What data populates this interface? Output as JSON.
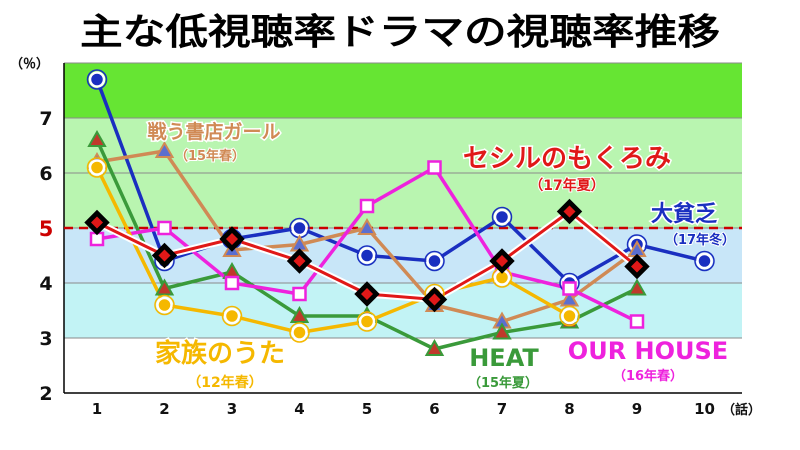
{
  "chart_data": {
    "type": "line",
    "title": "主な低視聴率ドラマの視聴率推移",
    "ylabel": "（％）",
    "xlabel": "（話）",
    "x": [
      1,
      2,
      3,
      4,
      5,
      6,
      7,
      8,
      9,
      10
    ],
    "x_tick_labels": [
      "1",
      "2",
      "3",
      "4",
      "5",
      "6",
      "7",
      "8",
      "9",
      "10"
    ],
    "y_tick_labels": [
      "2",
      "3",
      "4",
      "5",
      "6",
      "7"
    ],
    "ylim": [
      2,
      8
    ],
    "reference_line": {
      "value": 5,
      "label": "5",
      "color": "#cc0000"
    },
    "bands": [
      {
        "from": 7,
        "to": 8,
        "color": "#66e533"
      },
      {
        "from": 5,
        "to": 7,
        "color": "#b9f5b0"
      },
      {
        "from": 4,
        "to": 5,
        "color": "#c8e6f8"
      },
      {
        "from": 3,
        "to": 4,
        "color": "#c2f3f5"
      }
    ],
    "series": [
      {
        "name": "大貧乏",
        "season": "（17年冬）",
        "color": "#1a2fc0",
        "marker": "circle",
        "values": [
          7.7,
          4.4,
          4.8,
          5.0,
          4.5,
          4.4,
          5.2,
          4.0,
          4.7,
          4.4
        ]
      },
      {
        "name": "戦う書店ガール",
        "season": "（15年春）",
        "color": "#d08a55",
        "marker": "triangle",
        "values": [
          6.2,
          6.4,
          4.6,
          4.7,
          5.0,
          3.6,
          3.3,
          3.7,
          4.6,
          null
        ]
      },
      {
        "name": "HEAT",
        "season": "（15年夏）",
        "color": "#3a9a3a",
        "marker": "triangle",
        "values": [
          6.6,
          3.9,
          4.2,
          3.4,
          3.4,
          2.8,
          3.1,
          3.3,
          3.9,
          null
        ]
      },
      {
        "name": "OUR HOUSE",
        "season": "（16年春）",
        "color": "#ee22dd",
        "marker": "square",
        "values": [
          4.8,
          5.0,
          4.0,
          3.8,
          5.4,
          6.1,
          4.2,
          3.9,
          3.3,
          null
        ]
      },
      {
        "name": "家族のうた",
        "season": "（12年春）",
        "color": "#f5b800",
        "marker": "circle",
        "values": [
          6.1,
          3.6,
          3.4,
          3.1,
          3.3,
          3.8,
          4.1,
          3.4,
          null,
          null
        ]
      },
      {
        "name": "セシルのもくろみ",
        "season": "（17年夏）",
        "color": "#e01818",
        "marker": "diamond",
        "values": [
          5.1,
          4.5,
          4.8,
          4.4,
          3.8,
          3.7,
          4.4,
          5.3,
          4.3,
          null
        ]
      }
    ]
  }
}
